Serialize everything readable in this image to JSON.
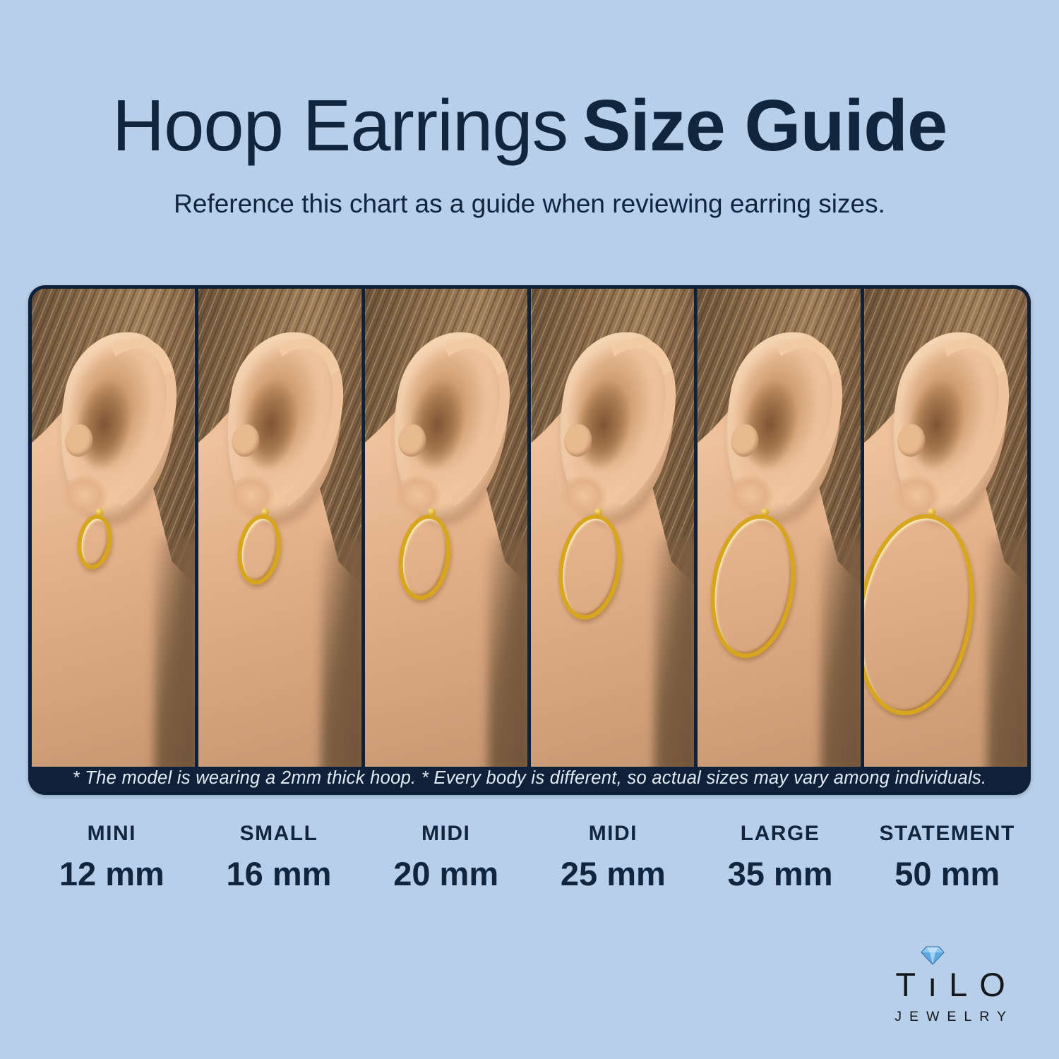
{
  "page": {
    "title_regular": "Hoop Earrings",
    "title_bold": "Size Guide",
    "subtitle": "Reference this chart as a guide when reviewing earring sizes."
  },
  "disclaimer": "* The model is wearing a 2mm thick hoop. * Every body is different, so actual sizes may vary among individuals.",
  "sizes": [
    {
      "label": "MINI",
      "mm": "12 mm",
      "mm_value": 12
    },
    {
      "label": "SMALL",
      "mm": "16 mm",
      "mm_value": 16
    },
    {
      "label": "MIDI",
      "mm": "20 mm",
      "mm_value": 20
    },
    {
      "label": "MIDI",
      "mm": "25 mm",
      "mm_value": 25
    },
    {
      "label": "LARGE",
      "mm": "35 mm",
      "mm_value": 35
    },
    {
      "label": "STATEMENT",
      "mm": "50 mm",
      "mm_value": 50
    }
  ],
  "brand": {
    "l1": "T",
    "l2": "ı",
    "l3": "L",
    "l4": "O",
    "name": "TiLO",
    "subname": "JEWELRY",
    "diamond_icon": "diamond-icon"
  },
  "colors": {
    "background": "#b8cfe9",
    "navy_text": "#12253f",
    "frame_navy": "#0f2138",
    "gold": "#d7a51e",
    "diamond_blue": "#5fa8e0"
  }
}
